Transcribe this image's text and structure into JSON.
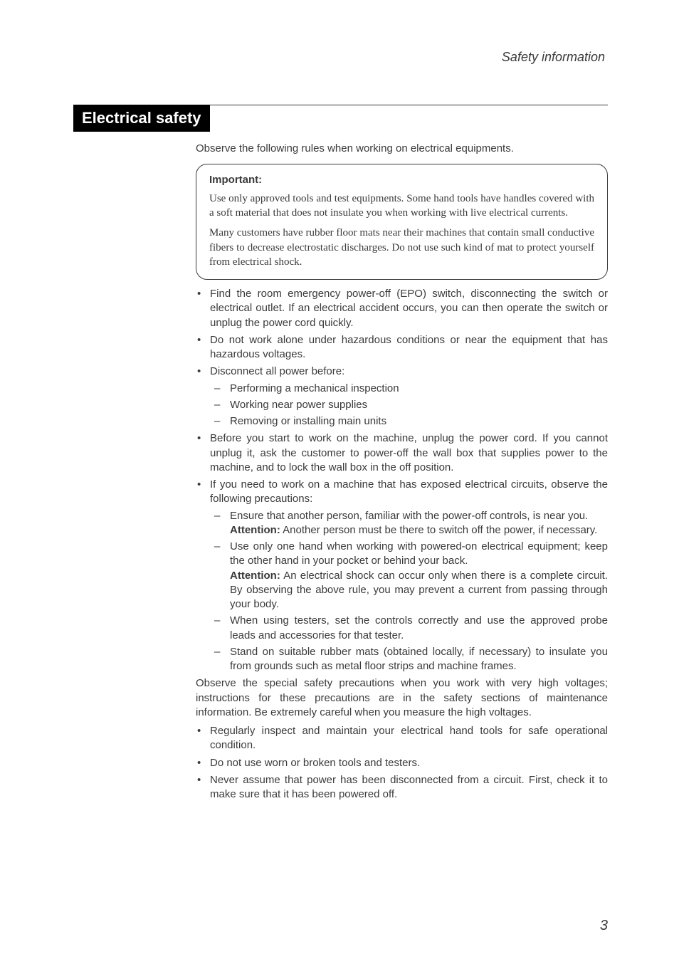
{
  "colors": {
    "text": "#3a3a3a",
    "title_bg": "#000000",
    "title_fg": "#ffffff",
    "page_bg": "#ffffff",
    "rule": "#3a3a3a"
  },
  "typography": {
    "body_family": "Arial, Helvetica, sans-serif",
    "callout_family": "Georgia, 'Times New Roman', serif",
    "body_size_pt": 11,
    "running_head_size_pt": 13,
    "title_size_pt": 17,
    "page_number_size_pt": 15
  },
  "running_head": "Safety information",
  "section_title": "Electrical safety",
  "intro": "Observe the following rules when working on electrical equipments.",
  "callout": {
    "title": "Important:",
    "paragraphs": [
      "Use only approved tools and test equipments. Some hand tools have handles covered with a soft material that does not insulate you when working with live electrical currents.",
      "Many customers have rubber floor mats near their machines that contain small conductive fibers to decrease electrostatic discharges. Do not use such kind of mat to protect yourself from electrical shock."
    ]
  },
  "bullets_a": {
    "b1": "Find the room emergency power-off (EPO) switch, disconnecting the switch or electrical outlet. If an electrical accident occurs, you can then operate the switch or unplug the power cord quickly.",
    "b2": "Do not work alone under hazardous conditions or near the equipment that has hazardous voltages.",
    "b3": "Disconnect all power before:",
    "b3_sub": {
      "s1": "Performing a mechanical inspection",
      "s2": "Working near power supplies",
      "s3": "Removing or installing main units"
    },
    "b4": "Before you start to work on the machine, unplug the power cord. If you cannot unplug it, ask the customer to power-off the wall box that supplies power to the machine, and to lock the wall box in the off position.",
    "b5": "If you need to work on a machine that has exposed electrical circuits, observe the following precautions:",
    "b5_sub": {
      "s1": "Ensure that another person, familiar with the power-off controls, is near you.",
      "s1_att_label": "Attention:",
      "s1_att_text": " Another person must be there to switch off the power, if necessary.",
      "s2": "Use only one hand when working with powered-on electrical equipment; keep the other hand in your pocket or behind your back.",
      "s2_att_label": "Attention:",
      "s2_att_text": " An electrical shock can occur only when there is a complete circuit. By observing the above rule, you may prevent a current from passing through your body.",
      "s3": "When using testers, set the controls correctly and use the approved probe leads and accessories for that tester.",
      "s4": "Stand on suitable rubber mats (obtained locally, if necessary) to insulate you from grounds such as metal floor strips and machine frames."
    }
  },
  "mid_para": "Observe the special safety precautions when you work with very high voltages; instructions for these precautions are in the safety sections of maintenance information. Be extremely careful when you measure the  high voltages.",
  "bullets_b": {
    "b1": "Regularly inspect and maintain your electrical hand tools for safe operational condition.",
    "b2": "Do not use worn or broken tools and testers.",
    "b3": "Never assume that power has been disconnected from a circuit. First, check it to make sure that it has been powered off."
  },
  "page_number": "3"
}
